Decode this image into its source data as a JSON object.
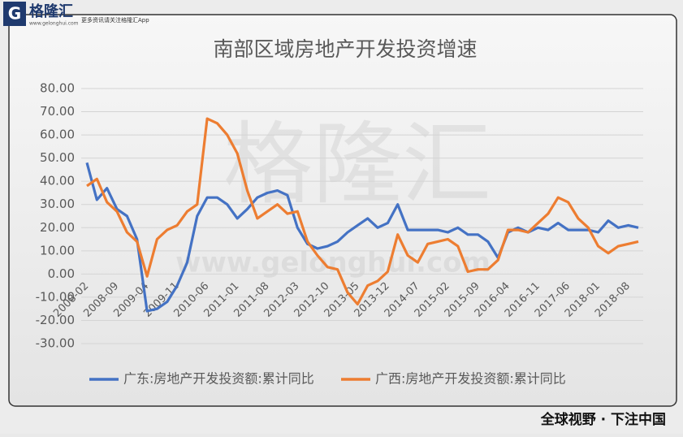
{
  "chart_data": {
    "type": "line",
    "title": "南部区域房地产开发投资增速",
    "categories": [
      "2008-02",
      null,
      null,
      "2008-09",
      null,
      null,
      "2009-04",
      null,
      null,
      "2009-11",
      null,
      null,
      "2010-06",
      null,
      null,
      "2011-01",
      null,
      null,
      "2011-08",
      null,
      null,
      "2012-03",
      null,
      null,
      "2012-10",
      null,
      null,
      "2013-05",
      null,
      null,
      "2013-12",
      null,
      null,
      "2014-07",
      null,
      null,
      "2015-02",
      null,
      null,
      "2015-09",
      null,
      null,
      "2016-04",
      null,
      null,
      "2016-11",
      null,
      null,
      "2017-06",
      null,
      null,
      "2018-01",
      null,
      null,
      "2018-08",
      null
    ],
    "series": [
      {
        "name": "广东:房地产开发投资额:累计同比",
        "color": "#4472c4",
        "values": [
          48,
          32,
          37,
          28,
          25,
          15,
          -16,
          -15,
          -12,
          -5,
          5,
          25,
          33,
          33,
          30,
          24,
          28,
          33,
          35,
          36,
          34,
          20,
          13,
          11,
          12,
          14,
          18,
          21,
          24,
          20,
          22,
          30,
          19,
          19,
          19,
          19,
          18,
          20,
          17,
          17,
          14,
          7,
          18,
          20,
          18,
          20,
          19,
          22,
          19,
          19,
          19,
          18,
          23,
          20,
          21,
          20
        ]
      },
      {
        "name": "广西:房地产开发投资额:累计同比",
        "color": "#ed7d31",
        "values": [
          38,
          41,
          31,
          27,
          18,
          14,
          -1,
          15,
          19,
          21,
          27,
          30,
          67,
          65,
          60,
          52,
          36,
          24,
          27,
          30,
          26,
          27,
          14,
          8,
          3,
          2,
          -8,
          -13,
          -5,
          -3,
          1,
          17,
          8,
          5,
          13,
          14,
          15,
          12,
          1,
          2,
          2,
          6,
          19,
          19,
          18,
          22,
          26,
          33,
          31,
          24,
          20,
          12,
          9,
          12,
          13,
          14
        ]
      }
    ],
    "ylim": [
      -30,
      80
    ],
    "yticks": [
      {
        "value": -30,
        "label": "-30.00"
      },
      {
        "value": -20,
        "label": "-20.00"
      },
      {
        "value": -10,
        "label": "-10.00"
      },
      {
        "value": 0,
        "label": "0.00"
      },
      {
        "value": 10,
        "label": "10.00"
      },
      {
        "value": 20,
        "label": "20.00"
      },
      {
        "value": 30,
        "label": "30.00"
      },
      {
        "value": 40,
        "label": "40.00"
      },
      {
        "value": 50,
        "label": "50.00"
      },
      {
        "value": 60,
        "label": "60.00"
      },
      {
        "value": 70,
        "label": "70.00"
      },
      {
        "value": 80,
        "label": "80.00"
      }
    ],
    "grid": true,
    "legend": "bottom"
  },
  "branding": {
    "logo": "格隆汇",
    "site": "www.gelonghui.com",
    "slogan": "更多资讯请关注格隆汇App",
    "watermark": "格隆汇",
    "footer": "全球视野 · 下注中国"
  }
}
